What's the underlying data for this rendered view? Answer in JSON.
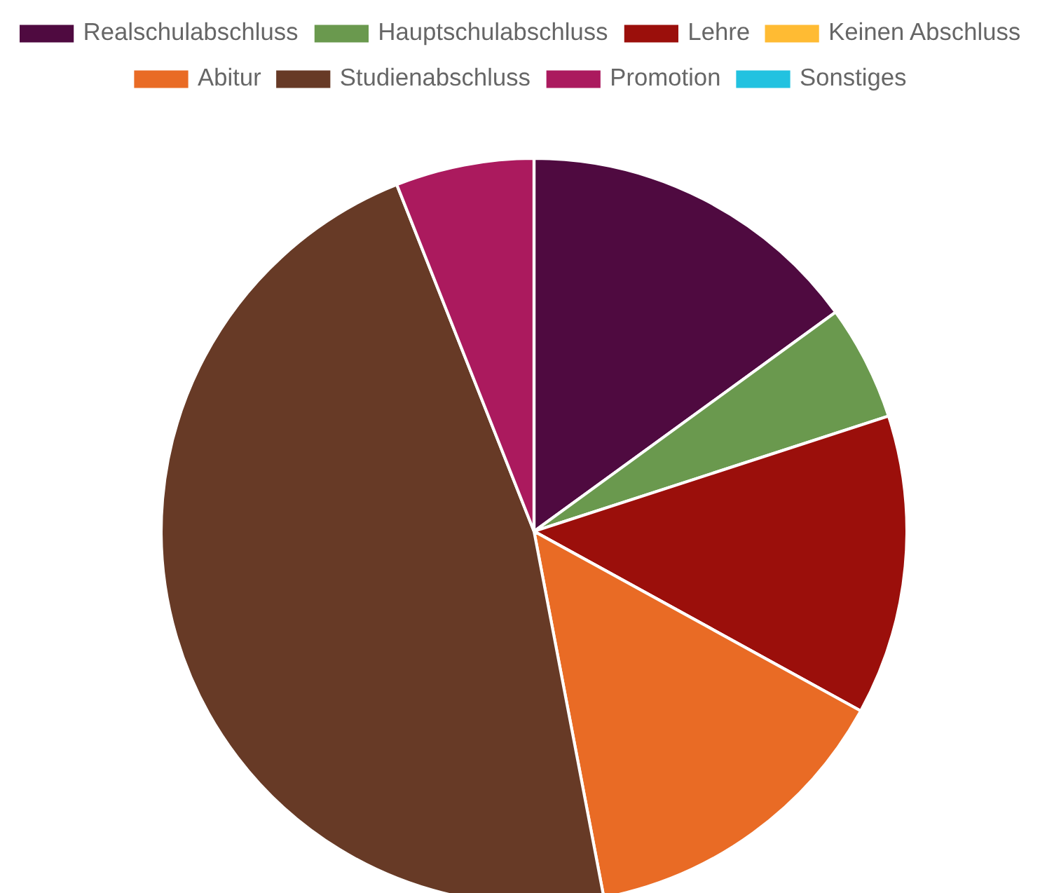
{
  "chart_data": {
    "type": "pie",
    "categories": [
      "Realschulabschluss",
      "Hauptschulabschluss",
      "Lehre",
      "Keinen Abschluss",
      "Abitur",
      "Studienabschluss",
      "Promotion",
      "Sonstiges"
    ],
    "values": [
      15,
      5,
      13,
      0,
      14,
      47,
      6,
      0
    ],
    "colors": [
      "#4f0a40",
      "#6a994e",
      "#9b0f0b",
      "#ffbb33",
      "#e96b25",
      "#673a26",
      "#ab1a5e",
      "#22c2e0"
    ],
    "legend": "top"
  }
}
